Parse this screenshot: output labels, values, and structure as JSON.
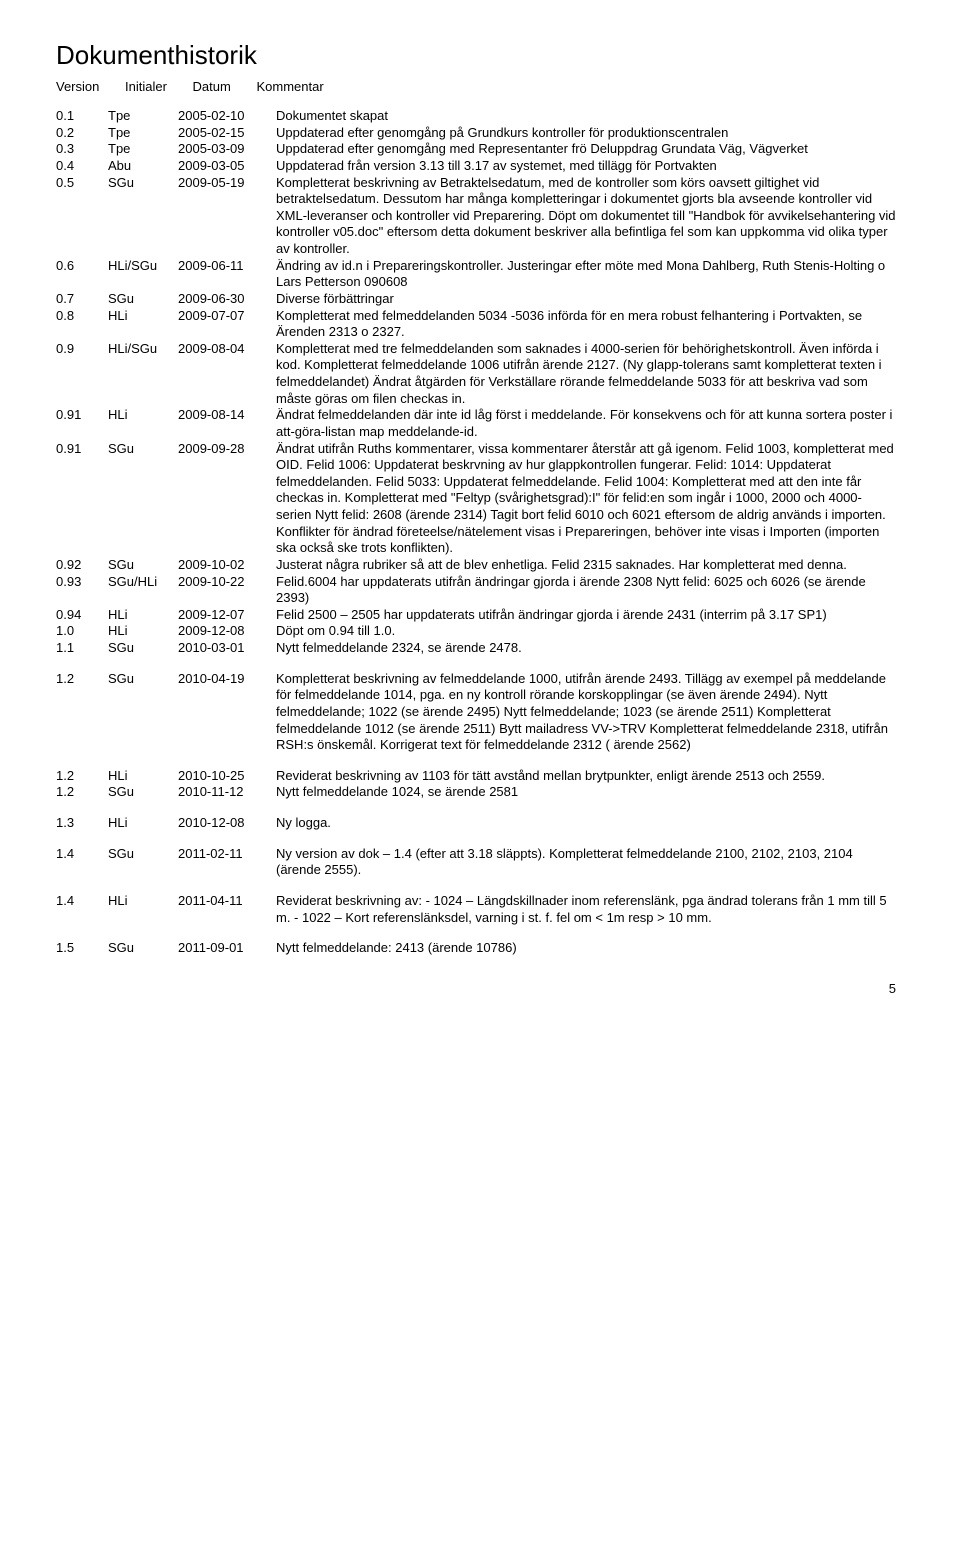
{
  "title": "Dokumenthistorik",
  "columns": {
    "version": "Version",
    "initials": "Initialer",
    "date": "Datum",
    "comment": "Kommentar"
  },
  "page_number": "5",
  "rows": [
    {
      "v": "0.1",
      "i": "Tpe",
      "d": "2005-02-10",
      "c": "Dokumentet skapat"
    },
    {
      "v": "0.2",
      "i": "Tpe",
      "d": "2005-02-15",
      "c": "Uppdaterad efter genomgång på Grundkurs kontroller för produktionscentralen"
    },
    {
      "v": "0.3",
      "i": "Tpe",
      "d": "2005-03-09",
      "c": "Uppdaterad efter genomgång med Representanter frö Deluppdrag Grundata Väg, Vägverket"
    },
    {
      "v": "0.4",
      "i": "Abu",
      "d": "2009-03-05",
      "c": "Uppdaterad från version 3.13 till 3.17 av systemet, med tillägg för Portvakten"
    },
    {
      "v": "0.5",
      "i": "SGu",
      "d": "2009-05-19",
      "c": "Kompletterat beskrivning av Betraktelsedatum, med de kontroller som körs oavsett giltighet vid betraktelsedatum. Dessutom har många kompletteringar i dokumentet gjorts bla avseende kontroller vid XML-leveranser och kontroller vid Preparering. Döpt om dokumentet till \"Handbok för avvikelsehantering vid kontroller v05.doc\" eftersom detta dokument beskriver alla befintliga fel som kan uppkomma vid olika typer av kontroller."
    },
    {
      "v": "0.6",
      "i": "HLi/SGu",
      "d": "2009-06-11",
      "c": "Ändring av id.n i Prepareringskontroller. Justeringar efter möte med Mona Dahlberg, Ruth Stenis-Holting o Lars Petterson 090608"
    },
    {
      "v": "0.7",
      "i": "SGu",
      "d": "2009-06-30",
      "c": "Diverse förbättringar"
    },
    {
      "v": "0.8",
      "i": "HLi",
      "d": "2009-07-07",
      "c": "Kompletterat med felmeddelanden 5034 -5036 införda för en mera robust felhantering i Portvakten, se Ärenden 2313 o 2327."
    },
    {
      "v": "0.9",
      "i": "HLi/SGu",
      "d": "2009-08-04",
      "c": "Kompletterat med tre felmeddelanden som saknades i 4000-serien för behörighetskontroll. Även införda i kod. Kompletterat felmeddelande 1006 utifrån ärende 2127. (Ny glapp-tolerans samt kompletterat texten i felmeddelandet) Ändrat åtgärden för Verkställare rörande felmeddelande 5033 för att beskriva vad som måste göras om filen checkas in."
    },
    {
      "v": "0.91",
      "i": "HLi",
      "d": "2009-08-14",
      "c": "Ändrat felmeddelanden där inte id låg först i meddelande. För konsekvens och för att kunna sortera poster i att-göra-listan map meddelande-id."
    },
    {
      "v": "0.91",
      "i": "SGu",
      "d": "2009-09-28",
      "c": "Ändrat utifrån Ruths kommentarer, vissa kommentarer återstår att gå igenom. Felid 1003, kompletterat med OID. Felid 1006: Uppdaterat beskrvning av hur glappkontrollen fungerar. Felid: 1014: Uppdaterat felmeddelanden. Felid 5033: Uppdaterat felmeddelande. Felid 1004: Kompletterat med att den inte får checkas in. Kompletterat med \"Feltyp (svårighetsgrad):I\" för felid:en som ingår i 1000, 2000 och 4000-serien Nytt felid: 2608 (ärende 2314) Tagit bort felid 6010 och 6021 eftersom de aldrig används i importen. Konflikter för ändrad företeelse/nätelement visas i Prepareringen, behöver inte visas i Importen (importen ska också ske trots konflikten)."
    },
    {
      "v": "0.92",
      "i": "SGu",
      "d": "2009-10-02",
      "c": "Justerat några rubriker så att de blev enhetliga. Felid 2315 saknades. Har kompletterat med denna."
    },
    {
      "v": "0.93",
      "i": "SGu/HLi",
      "d": "2009-10-22",
      "c": "Felid.6004 har uppdaterats utifrån ändringar gjorda i ärende 2308 Nytt felid: 6025 och 6026 (se ärende 2393)"
    },
    {
      "v": "0.94",
      "i": "HLi",
      "d": "2009-12-07",
      "c": "Felid 2500 – 2505 har uppdaterats utifrån ändringar gjorda i ärende 2431 (interrim på 3.17 SP1)"
    },
    {
      "v": "1.0",
      "i": "HLi",
      "d": "2009-12-08",
      "c": "Döpt om 0.94 till 1.0."
    },
    {
      "v": "1.1",
      "i": "SGu",
      "d": "2010-03-01",
      "c": "Nytt felmeddelande 2324, se ärende 2478."
    },
    {
      "gap": true
    },
    {
      "v": "1.2",
      "i": "SGu",
      "d": "2010-04-19",
      "c": "Kompletterat beskrivning av felmeddelande 1000, utifrån ärende 2493. Tillägg av exempel på meddelande för felmeddelande 1014, pga. en ny kontroll rörande korskopplingar (se även ärende 2494). Nytt felmeddelande; 1022 (se ärende 2495) Nytt felmeddelande; 1023 (se ärende 2511) Kompletterat felmeddelande 1012 (se ärende 2511) Bytt mailadress VV->TRV Kompletterat felmeddelande 2318, utifrån RSH:s önskemål. Korrigerat text för felmeddelande 2312 ( ärende 2562)"
    },
    {
      "gap": true
    },
    {
      "v": "1.2",
      "i": "HLi",
      "d": "2010-10-25",
      "c": "Reviderat beskrivning av 1103 för tätt avstånd mellan brytpunkter, enligt ärende 2513 och 2559."
    },
    {
      "v": "1.2",
      "i": "SGu",
      "d": "2010-11-12",
      "c": "Nytt felmeddelande 1024, se ärende 2581"
    },
    {
      "gap": true
    },
    {
      "v": "1.3",
      "i": "HLi",
      "d": "2010-12-08",
      "c": "Ny logga."
    },
    {
      "gap": true
    },
    {
      "v": "1.4",
      "i": "SGu",
      "d": "2011-02-11",
      "c": "Ny version av dok – 1.4 (efter att 3.18 släppts). Kompletterat felmeddelande 2100, 2102, 2103, 2104 (ärende 2555)."
    },
    {
      "gap": true
    },
    {
      "v": "1.4",
      "i": "HLi",
      "d": "2011-04-11",
      "c": "Reviderat beskrivning av: - 1024 – Längdskillnader inom referenslänk, pga ändrad tolerans från 1 mm till 5 m. - 1022 – Kort referenslänksdel, varning i st. f. fel om < 1m resp > 10 mm."
    },
    {
      "gap": true
    },
    {
      "v": "1.5",
      "i": "SGu",
      "d": "2011-09-01",
      "c": "Nytt felmeddelande: 2413 (ärende 10786)"
    }
  ]
}
